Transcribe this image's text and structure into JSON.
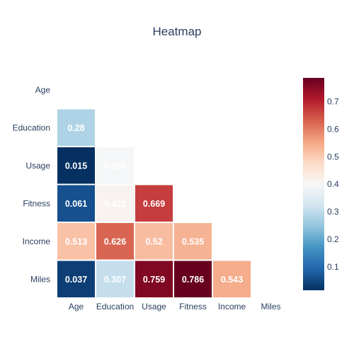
{
  "chart_data": {
    "type": "heatmap",
    "title": "Heatmap",
    "x_categories": [
      "Age",
      "Education",
      "Usage",
      "Fitness",
      "Income",
      "Miles"
    ],
    "y_categories": [
      "Age",
      "Education",
      "Usage",
      "Fitness",
      "Income",
      "Miles"
    ],
    "cells": [
      {
        "row": "Education",
        "col": "Age",
        "value": 0.28,
        "label": "0.28"
      },
      {
        "row": "Usage",
        "col": "Age",
        "value": 0.015,
        "label": "0.015"
      },
      {
        "row": "Usage",
        "col": "Education",
        "value": 0.395,
        "label": "0.395"
      },
      {
        "row": "Fitness",
        "col": "Age",
        "value": 0.061,
        "label": "0.061"
      },
      {
        "row": "Fitness",
        "col": "Education",
        "value": 0.411,
        "label": "0.411"
      },
      {
        "row": "Fitness",
        "col": "Usage",
        "value": 0.669,
        "label": "0.669"
      },
      {
        "row": "Income",
        "col": "Age",
        "value": 0.513,
        "label": "0.513"
      },
      {
        "row": "Income",
        "col": "Education",
        "value": 0.626,
        "label": "0.626"
      },
      {
        "row": "Income",
        "col": "Usage",
        "value": 0.52,
        "label": "0.52"
      },
      {
        "row": "Income",
        "col": "Fitness",
        "value": 0.535,
        "label": "0.535"
      },
      {
        "row": "Miles",
        "col": "Age",
        "value": 0.037,
        "label": "0.037"
      },
      {
        "row": "Miles",
        "col": "Education",
        "value": 0.307,
        "label": "0.307"
      },
      {
        "row": "Miles",
        "col": "Usage",
        "value": 0.759,
        "label": "0.759"
      },
      {
        "row": "Miles",
        "col": "Fitness",
        "value": 0.786,
        "label": "0.786"
      },
      {
        "row": "Miles",
        "col": "Income",
        "value": 0.543,
        "label": "0.543"
      }
    ],
    "colorscale": "RdBu (reversed)",
    "colorbar": {
      "range": [
        0.015,
        0.786
      ],
      "ticks": [
        "0.1",
        "0.2",
        "0.3",
        "0.4",
        "0.5",
        "0.6",
        "0.7"
      ],
      "placement": "right"
    },
    "grid": false
  }
}
